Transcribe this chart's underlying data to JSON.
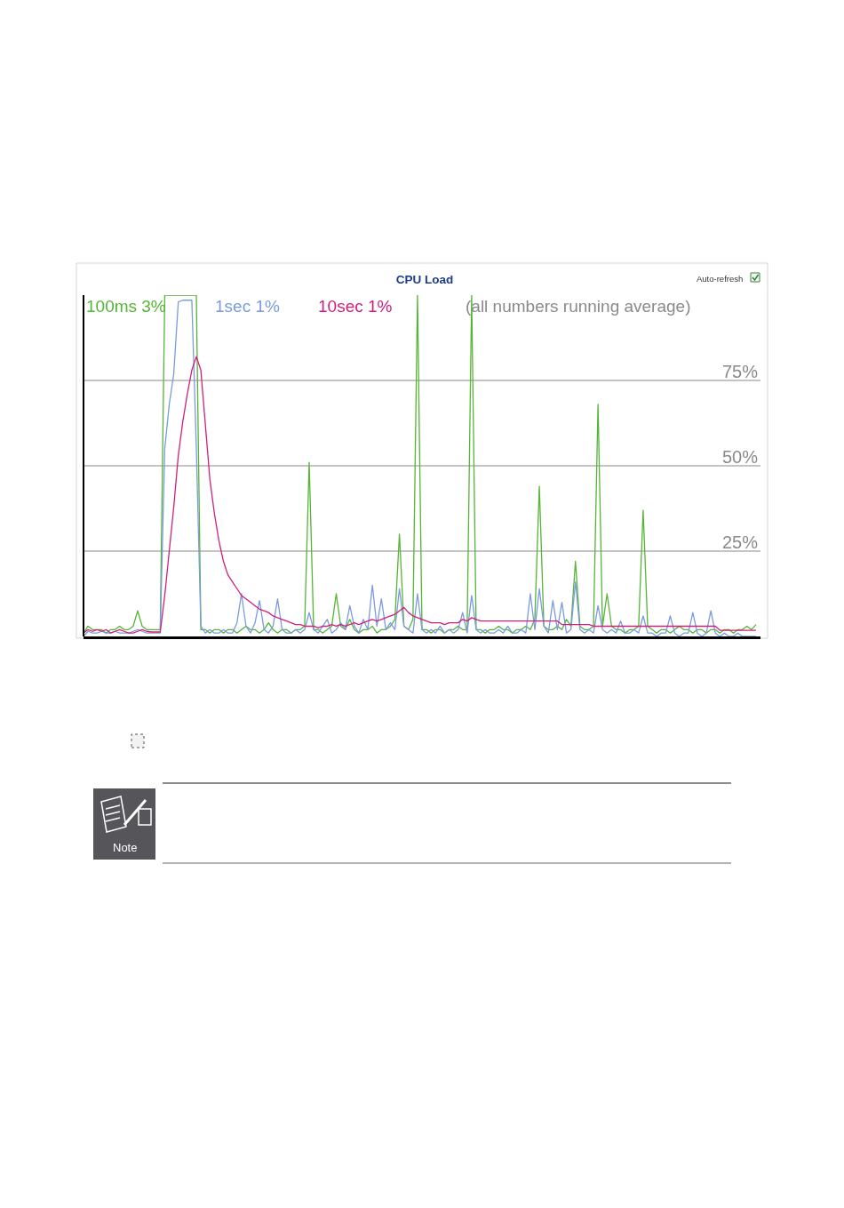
{
  "chart_data": {
    "type": "line",
    "title": "CPU Load",
    "categories": [
      null,
      null,
      null,
      null,
      null,
      null,
      null,
      null,
      null,
      null,
      null,
      null,
      null,
      null,
      null,
      null,
      null,
      null,
      null,
      null,
      null,
      null,
      null,
      null,
      null,
      null,
      null,
      null,
      null,
      null,
      null,
      null,
      null,
      null,
      null,
      null,
      null,
      null,
      null,
      null,
      null,
      null,
      null,
      null,
      null,
      null,
      null,
      null,
      null,
      null,
      null,
      null,
      null,
      null,
      null,
      null,
      null,
      null,
      null,
      null,
      null,
      null,
      null,
      null,
      null,
      null,
      null,
      null,
      null,
      null,
      null,
      null,
      null,
      null,
      null,
      null,
      null,
      null,
      null,
      null,
      null,
      null,
      null,
      null,
      null,
      null,
      null,
      null,
      null,
      null,
      null,
      null,
      null,
      null,
      null,
      null,
      null,
      null,
      null,
      null,
      null,
      null,
      null,
      null,
      null,
      null,
      null,
      null,
      null,
      null,
      null,
      null,
      null,
      null,
      null,
      null,
      null,
      null,
      null,
      null,
      null,
      null,
      null,
      null,
      null,
      null,
      null,
      null,
      null,
      null,
      null,
      null,
      null,
      null,
      null,
      null,
      null,
      null,
      null,
      null,
      null,
      null,
      null,
      null,
      null,
      null,
      null,
      null,
      null,
      null
    ],
    "series": [
      {
        "name": "100ms 3%",
        "color": "#55b535",
        "values": [
          1,
          3,
          2,
          2,
          2,
          1,
          2,
          2,
          3,
          2,
          2,
          3,
          7.5,
          3,
          2,
          2,
          2,
          2,
          100,
          100,
          100,
          100,
          100,
          100,
          100,
          100,
          2,
          2,
          1,
          2,
          2,
          1,
          2,
          2,
          1,
          2,
          3,
          2,
          2,
          1,
          2,
          4,
          2,
          1,
          2,
          2,
          1,
          2,
          2,
          3,
          51,
          2,
          2,
          1,
          2,
          3,
          12.5,
          3,
          2,
          5,
          2,
          1,
          2,
          2,
          3,
          1,
          2,
          2,
          3,
          5,
          30,
          3,
          2,
          5,
          100,
          2,
          2,
          1,
          2,
          2,
          1,
          2,
          2,
          3,
          2,
          2,
          100,
          2,
          2,
          1,
          2,
          2,
          3,
          2,
          2,
          1,
          2,
          2,
          3,
          2,
          5,
          44,
          3,
          2,
          2,
          3,
          2,
          5,
          3,
          22,
          3,
          2,
          2,
          3,
          68,
          3,
          12.5,
          3,
          2,
          2,
          1,
          2,
          2,
          3,
          37,
          3,
          2,
          1,
          2,
          2,
          1,
          2,
          3,
          2,
          2,
          1,
          2,
          2,
          1,
          2,
          2,
          1,
          2,
          2,
          1,
          2,
          2,
          3,
          2,
          3.5
        ]
      },
      {
        "name": "1sec 1%",
        "color": "#7b9be0",
        "values": [
          0,
          1.5,
          1,
          1,
          1.5,
          1,
          1,
          1.5,
          1,
          1,
          1,
          1.5,
          2,
          1.5,
          1,
          1,
          1,
          1,
          55,
          68,
          77,
          98,
          98.5,
          98.5,
          98.5,
          55,
          3,
          1,
          2,
          1,
          1,
          2,
          1,
          1,
          4,
          12.5,
          3,
          1,
          4,
          10.5,
          2,
          1,
          3,
          11,
          2,
          1,
          1,
          2,
          1,
          2,
          7,
          2,
          1,
          3,
          5,
          1,
          2,
          4,
          2,
          9,
          3,
          1,
          5,
          2,
          15,
          3,
          11,
          2,
          4,
          2,
          14,
          3,
          2,
          1,
          12.5,
          2,
          1,
          2,
          1,
          3,
          1,
          2,
          1,
          2,
          7,
          1,
          12,
          2,
          1,
          2,
          1,
          1,
          2,
          1,
          3,
          1,
          1,
          2,
          1,
          12.5,
          2,
          14,
          3,
          1,
          10.5,
          2,
          10,
          1,
          2,
          16,
          2,
          1,
          2,
          1,
          9,
          2,
          1,
          2,
          1,
          4.5,
          1,
          1,
          2,
          1,
          6,
          1,
          1,
          0,
          1,
          1,
          6,
          1,
          0,
          1,
          1,
          7,
          1,
          0,
          1,
          7.5,
          1,
          0,
          1,
          0,
          0,
          1,
          0,
          0,
          0,
          0
        ]
      },
      {
        "name": "10sec 1%",
        "color": "#d0207d",
        "values": [
          1,
          2,
          1.5,
          2,
          1.5,
          2,
          1,
          1.5,
          2,
          1.5,
          1,
          1,
          1.5,
          2,
          1.5,
          1.3,
          1.3,
          1.3,
          12,
          25,
          38,
          53,
          63,
          71,
          78,
          82,
          78,
          62,
          46,
          36,
          28,
          22,
          18,
          16,
          14,
          12,
          11,
          10,
          9,
          8,
          7.5,
          7,
          6,
          5.5,
          5,
          4.5,
          4,
          3.5,
          3.5,
          3,
          3,
          3,
          2.5,
          3,
          3,
          3.5,
          3,
          3.5,
          3,
          3.5,
          4,
          3.5,
          4,
          4.5,
          5,
          4.5,
          5,
          5.5,
          6,
          6.5,
          7.5,
          8.5,
          7,
          6,
          5.5,
          5,
          4.5,
          4,
          4,
          4,
          3.5,
          4,
          4,
          4,
          5,
          4.5,
          5.5,
          5,
          4.5,
          4.5,
          4.5,
          4.5,
          4.5,
          4.5,
          4.5,
          4.5,
          4.5,
          4.5,
          4.5,
          4.5,
          4.5,
          4.5,
          4.5,
          4.5,
          4.5,
          4.5,
          3.5,
          3.5,
          3.5,
          3.5,
          3.5,
          3.5,
          3.5,
          3,
          3,
          3,
          3,
          3,
          3,
          3,
          3,
          3,
          3,
          3,
          3,
          3,
          3,
          3,
          3,
          3,
          3,
          3,
          3,
          3,
          3,
          3,
          3,
          3,
          3,
          3,
          3,
          1.8,
          1.8,
          1.8,
          1.8,
          1.8,
          1.8,
          1.8,
          1.8,
          1.8
        ]
      }
    ],
    "ylim": [
      0,
      100
    ],
    "yticks": [
      {
        "value": 25,
        "label": "25%"
      },
      {
        "value": 50,
        "label": "50%"
      },
      {
        "value": 75,
        "label": "75%"
      }
    ],
    "grid": "y",
    "tick_labels": "y",
    "annotations": [
      "(all numbers running average)",
      "Auto-refresh",
      "Note"
    ]
  }
}
